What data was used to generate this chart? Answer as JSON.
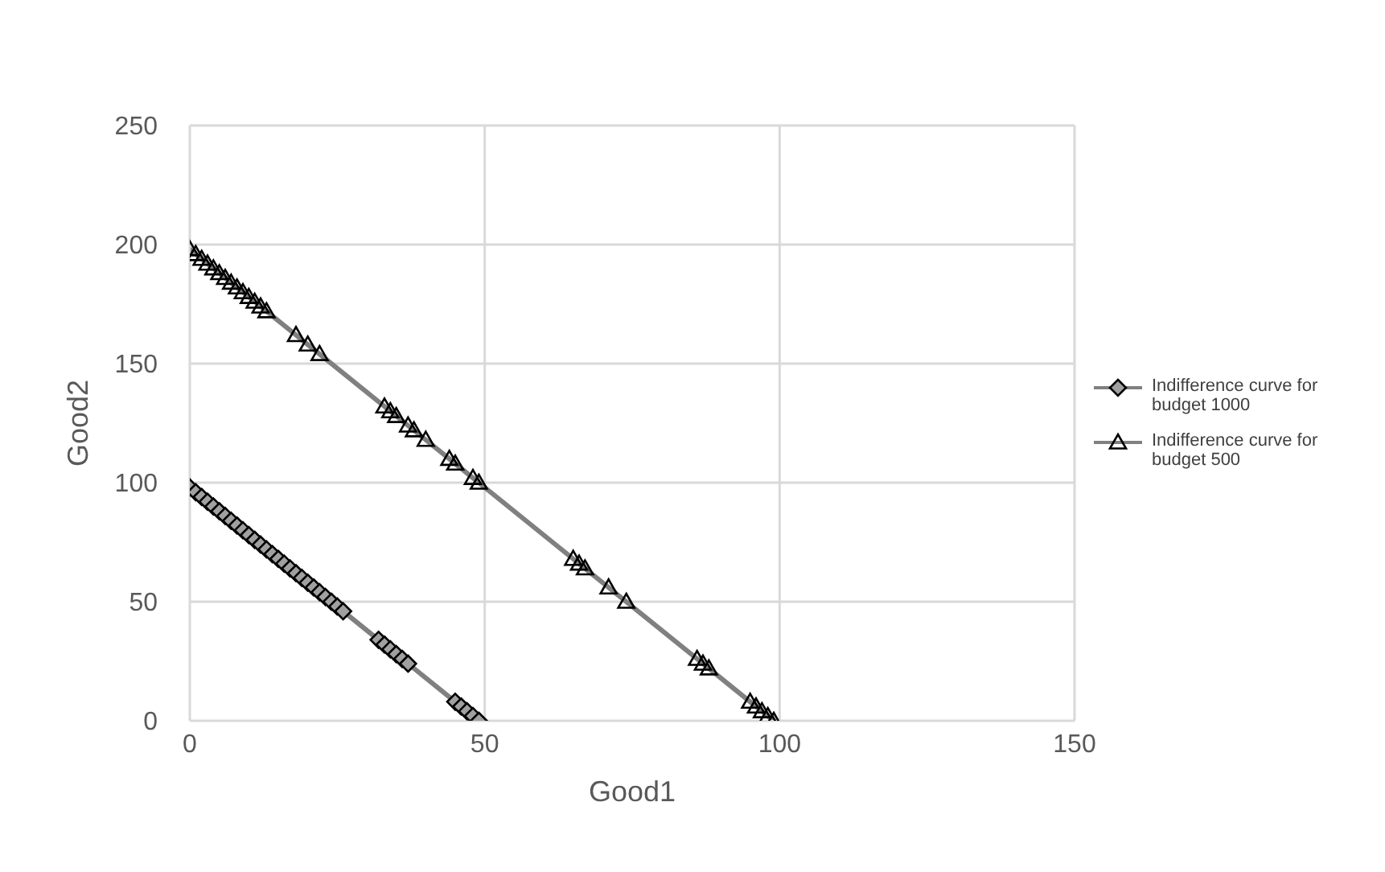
{
  "chart_data": {
    "type": "line",
    "xlabel": "Good1",
    "ylabel": "Good2",
    "xlim": [
      0,
      150
    ],
    "xticks": [
      0,
      50,
      100,
      150
    ],
    "ylim": [
      0,
      250
    ],
    "yticks": [
      0,
      50,
      100,
      150,
      200,
      250
    ],
    "grid": true,
    "legend": "right",
    "series": [
      {
        "name": "Indifference curve for budget 1000",
        "color": "#808080",
        "marker": "diamond",
        "x": [
          0,
          1,
          2,
          3,
          4,
          5,
          6,
          7,
          8,
          9,
          10,
          11,
          12,
          13,
          14,
          15,
          16,
          17,
          18,
          19,
          20,
          21,
          22,
          23,
          24,
          25,
          26,
          32,
          33,
          34,
          35,
          36,
          37,
          45,
          46,
          47,
          48,
          49
        ],
        "values": [
          98,
          96,
          94,
          92,
          90,
          88,
          86,
          84,
          82,
          80,
          78,
          76,
          74,
          72,
          70,
          68,
          66,
          64,
          62,
          60,
          58,
          56,
          54,
          52,
          50,
          48,
          46,
          34,
          32,
          30,
          28,
          26,
          24,
          8,
          6,
          4,
          2,
          0
        ]
      },
      {
        "name": "Indifference curve for budget 500",
        "color": "#808080",
        "marker": "triangle",
        "x": [
          0,
          1,
          2,
          3,
          4,
          5,
          6,
          7,
          8,
          9,
          10,
          11,
          12,
          13,
          18,
          20,
          22,
          33,
          34,
          35,
          37,
          38,
          40,
          44,
          45,
          48,
          49,
          65,
          66,
          67,
          71,
          74,
          86,
          87,
          88,
          95,
          96,
          97,
          98,
          99
        ],
        "values": [
          198,
          196,
          194,
          192,
          190,
          188,
          186,
          184,
          182,
          180,
          178,
          176,
          174,
          172,
          162,
          158,
          154,
          132,
          130,
          128,
          124,
          122,
          118,
          110,
          108,
          102,
          100,
          68,
          66,
          64,
          56,
          50,
          26,
          24,
          22,
          8,
          6,
          4,
          2,
          0
        ]
      }
    ]
  }
}
